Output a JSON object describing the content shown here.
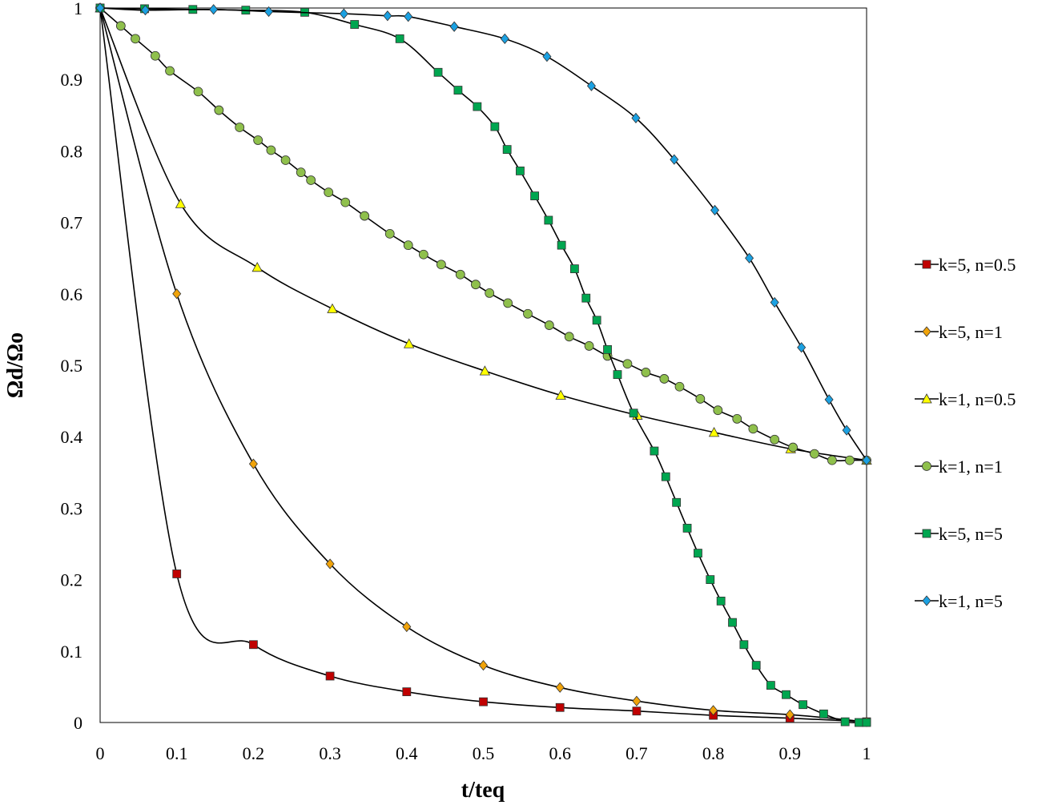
{
  "chart_data": {
    "type": "line",
    "title": "",
    "xlabel": "t/teq",
    "ylabel": "Ωd/Ωo",
    "xlim": [
      0,
      1
    ],
    "ylim": [
      0,
      1
    ],
    "xticks": [
      "0",
      "0.1",
      "0.2",
      "0.3",
      "0.4",
      "0.5",
      "0.6",
      "0.7",
      "0.8",
      "0.9",
      "1"
    ],
    "yticks": [
      "0",
      "0.1",
      "0.2",
      "0.3",
      "0.4",
      "0.5",
      "0.6",
      "0.7",
      "0.8",
      "0.9",
      "1"
    ],
    "grid": false,
    "legend_position": "right",
    "series": [
      {
        "name": "k=5, n=0.5",
        "marker": "square",
        "color": "#c00000",
        "x": [
          0,
          0.1,
          0.2,
          0.3,
          0.4,
          0.5,
          0.6,
          0.7,
          0.8,
          0.9,
          1.0
        ],
        "y": [
          1,
          0.208,
          0.109,
          0.065,
          0.043,
          0.029,
          0.021,
          0.016,
          0.01,
          0.006,
          0.001
        ]
      },
      {
        "name": "k=5, n=1",
        "marker": "diamond",
        "color": "#f0a30a",
        "x": [
          0,
          0.1,
          0.2,
          0.3,
          0.4,
          0.5,
          0.6,
          0.7,
          0.8,
          0.9,
          1.0
        ],
        "y": [
          1,
          0.6,
          0.362,
          0.222,
          0.134,
          0.08,
          0.049,
          0.03,
          0.017,
          0.011,
          0.001
        ]
      },
      {
        "name": "k=1, n=0.5",
        "marker": "triangle",
        "color": "#ffff00",
        "x": [
          0,
          0.105,
          0.205,
          0.303,
          0.403,
          0.502,
          0.601,
          0.701,
          0.801,
          0.901,
          1.0
        ],
        "y": [
          1,
          0.726,
          0.637,
          0.579,
          0.53,
          0.492,
          0.458,
          0.43,
          0.406,
          0.383,
          0.367
        ]
      },
      {
        "name": "k=1, n=1",
        "marker": "circle",
        "color": "#8fc04c",
        "x": [
          0,
          0.027,
          0.046,
          0.072,
          0.091,
          0.128,
          0.155,
          0.182,
          0.206,
          0.223,
          0.242,
          0.262,
          0.275,
          0.298,
          0.32,
          0.345,
          0.378,
          0.402,
          0.422,
          0.445,
          0.47,
          0.49,
          0.508,
          0.532,
          0.558,
          0.586,
          0.612,
          0.638,
          0.662,
          0.688,
          0.712,
          0.736,
          0.756,
          0.783,
          0.806,
          0.831,
          0.852,
          0.88,
          0.904,
          0.932,
          0.955,
          0.978,
          1.0
        ],
        "y": [
          1,
          0.975,
          0.957,
          0.933,
          0.912,
          0.883,
          0.857,
          0.833,
          0.815,
          0.801,
          0.787,
          0.77,
          0.759,
          0.742,
          0.728,
          0.709,
          0.684,
          0.668,
          0.655,
          0.641,
          0.627,
          0.613,
          0.601,
          0.587,
          0.572,
          0.556,
          0.54,
          0.527,
          0.513,
          0.502,
          0.49,
          0.481,
          0.47,
          0.453,
          0.437,
          0.425,
          0.411,
          0.396,
          0.385,
          0.376,
          0.367,
          0.367,
          0.367
        ]
      },
      {
        "name": "k=5, n=5",
        "marker": "square",
        "color": "#00a650",
        "x": [
          0,
          0.058,
          0.121,
          0.19,
          0.267,
          0.332,
          0.391,
          0.441,
          0.467,
          0.492,
          0.515,
          0.531,
          0.548,
          0.567,
          0.585,
          0.602,
          0.619,
          0.634,
          0.648,
          0.662,
          0.675,
          0.696,
          0.723,
          0.738,
          0.752,
          0.766,
          0.78,
          0.796,
          0.81,
          0.825,
          0.84,
          0.856,
          0.875,
          0.895,
          0.917,
          0.944,
          0.972,
          0.99,
          1.0
        ],
        "y": [
          1,
          0.999,
          0.998,
          0.997,
          0.994,
          0.977,
          0.957,
          0.91,
          0.885,
          0.862,
          0.834,
          0.802,
          0.772,
          0.737,
          0.703,
          0.668,
          0.635,
          0.594,
          0.563,
          0.522,
          0.487,
          0.433,
          0.38,
          0.344,
          0.308,
          0.272,
          0.237,
          0.2,
          0.17,
          0.14,
          0.109,
          0.08,
          0.052,
          0.039,
          0.025,
          0.012,
          0.001,
          0.0,
          0.0
        ]
      },
      {
        "name": "k=1, n=5",
        "marker": "diamond",
        "color": "#1ba1e2",
        "x": [
          0,
          0.059,
          0.148,
          0.22,
          0.318,
          0.375,
          0.402,
          0.462,
          0.528,
          0.583,
          0.641,
          0.699,
          0.749,
          0.802,
          0.847,
          0.88,
          0.915,
          0.951,
          0.974,
          1.0
        ],
        "y": [
          1,
          0.997,
          0.998,
          0.995,
          0.992,
          0.989,
          0.988,
          0.974,
          0.957,
          0.932,
          0.891,
          0.846,
          0.788,
          0.717,
          0.65,
          0.588,
          0.525,
          0.452,
          0.409,
          0.367
        ]
      }
    ]
  }
}
